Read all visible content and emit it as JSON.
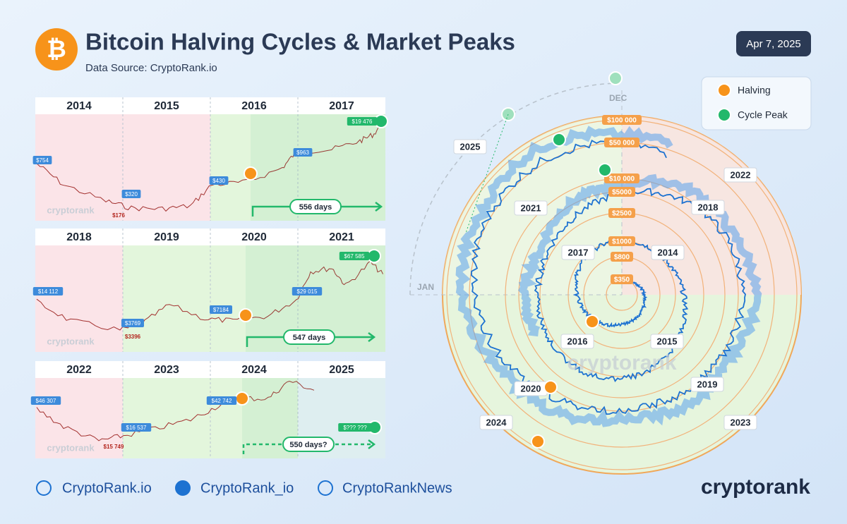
{
  "header": {
    "title": "Bitcoin Halving Cycles & Market Peaks",
    "source": "Data Source: CryptoRank.io",
    "date": "Apr 7, 2025"
  },
  "panels": [
    {
      "years": [
        "2014",
        "2015",
        "2016",
        "2017"
      ],
      "price_labels": [
        "$754",
        "$320",
        "$176",
        "$430",
        "$963",
        "$19 476"
      ],
      "days": "556 days"
    },
    {
      "years": [
        "2018",
        "2019",
        "2020",
        "2021"
      ],
      "price_labels": [
        "$14 112",
        "$3769",
        "$3396",
        "$7184",
        "$29 015",
        "$67 585"
      ],
      "days": "547 days"
    },
    {
      "years": [
        "2022",
        "2023",
        "2024",
        "2025"
      ],
      "price_labels": [
        "$46 307",
        "$16 537",
        "$15 749",
        "$42 742",
        "$??? ???"
      ],
      "days": "550 days?"
    }
  ],
  "watermark": "cryptorank",
  "spiral": {
    "month_labels": [
      "DEC",
      "JAN"
    ],
    "ring_labels": [
      "$350",
      "$800",
      "$1000",
      "$2500",
      "$5000",
      "$10 000",
      "$50 000",
      "$100 000"
    ],
    "year_labels": [
      "2025",
      "2022",
      "2021",
      "2018",
      "2017",
      "2014",
      "2016",
      "2015",
      "2020",
      "2019",
      "2024",
      "2023"
    ]
  },
  "legend": [
    "Halving",
    "Cycle Peak"
  ],
  "footer": {
    "links": [
      "CryptoRank.io",
      "CryptoRank_io",
      "CryptoRankNews"
    ],
    "logo": "cryptorank"
  }
}
